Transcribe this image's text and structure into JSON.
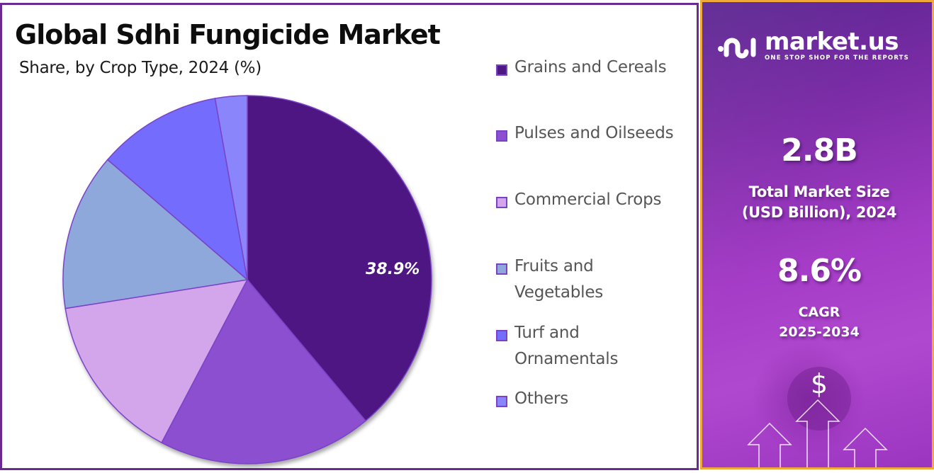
{
  "header": {
    "title": "Global Sdhi Fungicide Market",
    "subtitle": "Share, by Crop Type, 2024 (%)"
  },
  "chart_data": {
    "type": "pie",
    "title": "Global Sdhi Fungicide Market",
    "subtitle": "Share, by Crop Type, 2024 (%)",
    "categories": [
      "Grains and Cereals",
      "Pulses and Oilseeds",
      "Commercial Crops",
      "Fruits and Vegetables",
      "Turf and Ornamentals",
      "Others"
    ],
    "values": [
      38.9,
      18.8,
      14.8,
      13.8,
      10.9,
      2.8
    ],
    "colors": [
      "#4e1782",
      "#8b4fcf",
      "#d3a6ec",
      "#8ea8dc",
      "#736cfc",
      "#8b85fb"
    ],
    "data_labels": [
      {
        "category": "Grains and Cereals",
        "text": "38.9%"
      }
    ],
    "start_angle_deg": 0,
    "direction": "clockwise",
    "legend_position": "right"
  },
  "pie": {
    "label": "38.9%",
    "edge_color": "#7a43c6"
  },
  "legend": {
    "items": [
      {
        "label": "Grains and Cereals",
        "color": "#4e1782",
        "lines": [
          "Grains and Cereals"
        ]
      },
      {
        "label": "Pulses and Oilseeds",
        "color": "#8b4fcf",
        "lines": [
          "Pulses and Oilseeds"
        ]
      },
      {
        "label": "Commercial Crops",
        "color": "#d3a6ec",
        "lines": [
          "Commercial Crops"
        ]
      },
      {
        "label": "Fruits and Vegetables",
        "color": "#8ea8dc",
        "lines": [
          "Fruits and",
          "Vegetables"
        ]
      },
      {
        "label": "Turf and Ornamentals",
        "color": "#736cfc",
        "lines": [
          "Turf and",
          "Ornamentals"
        ]
      },
      {
        "label": "Others",
        "color": "#8b85fb",
        "lines": [
          "Others"
        ]
      }
    ]
  },
  "sidebar": {
    "brand": "market.us",
    "tagline": "ONE STOP SHOP FOR THE REPORTS",
    "market_size_value": "2.8B",
    "market_size_label_1": "Total Market Size",
    "market_size_label_2": "(USD Billion), 2024",
    "cagr_value": "8.6%",
    "cagr_label_1": "CAGR",
    "cagr_label_2": "2025-2034",
    "currency_symbol": "$",
    "accent_border": "#f0a83a",
    "frame_border": "#6a2a92"
  }
}
